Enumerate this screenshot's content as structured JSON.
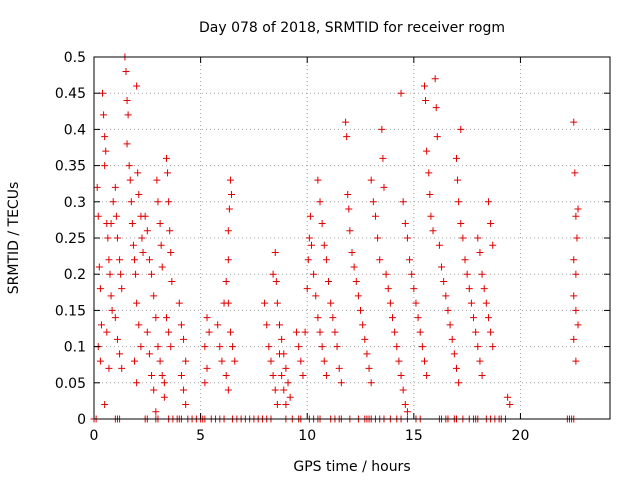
{
  "chart_data": {
    "type": "scatter",
    "title": "Day 078 of 2018, SRMTID for receiver rogm",
    "xlabel": "GPS time / hours",
    "ylabel": "SRMTID / TECUs",
    "xlim": [
      0,
      24.2
    ],
    "ylim": [
      0,
      0.5
    ],
    "xticks": [
      0,
      5,
      10,
      15,
      20
    ],
    "yticks": [
      0,
      0.05,
      0.1,
      0.15,
      0.2,
      0.25,
      0.3,
      0.35,
      0.4,
      0.45,
      0.5
    ],
    "xtick_labels": [
      "0",
      "5",
      "10",
      "15",
      "20"
    ],
    "ytick_labels": [
      "0",
      "0.05",
      "0.1",
      "0.15",
      "0.2",
      "0.25",
      "0.3",
      "0.35",
      "0.4",
      "0.45",
      "0.5"
    ],
    "grid": true,
    "marker": "+",
    "color": "#e00000",
    "series": [
      {
        "name": "SRMTID",
        "points": [
          [
            0.0,
            0.0
          ],
          [
            0.15,
            0.32
          ],
          [
            0.2,
            0.28
          ],
          [
            0.25,
            0.21
          ],
          [
            0.3,
            0.18
          ],
          [
            0.35,
            0.13
          ],
          [
            0.2,
            0.1
          ],
          [
            0.3,
            0.08
          ],
          [
            0.4,
            0.45
          ],
          [
            0.45,
            0.42
          ],
          [
            0.5,
            0.39
          ],
          [
            0.55,
            0.37
          ],
          [
            0.5,
            0.35
          ],
          [
            0.6,
            0.27
          ],
          [
            0.65,
            0.25
          ],
          [
            0.7,
            0.22
          ],
          [
            0.75,
            0.2
          ],
          [
            0.8,
            0.17
          ],
          [
            0.85,
            0.15
          ],
          [
            0.6,
            0.12
          ],
          [
            0.7,
            0.07
          ],
          [
            0.5,
            0.02
          ],
          [
            0.8,
            0.27
          ],
          [
            0.9,
            0.3
          ],
          [
            1.0,
            0.32
          ],
          [
            1.05,
            0.28
          ],
          [
            1.1,
            0.25
          ],
          [
            1.2,
            0.22
          ],
          [
            1.25,
            0.2
          ],
          [
            1.3,
            0.18
          ],
          [
            1.0,
            0.14
          ],
          [
            1.1,
            0.11
          ],
          [
            1.2,
            0.09
          ],
          [
            1.3,
            0.07
          ],
          [
            1.45,
            0.5
          ],
          [
            1.5,
            0.48
          ],
          [
            1.55,
            0.44
          ],
          [
            1.6,
            0.42
          ],
          [
            1.55,
            0.38
          ],
          [
            1.65,
            0.35
          ],
          [
            1.7,
            0.33
          ],
          [
            1.75,
            0.3
          ],
          [
            1.8,
            0.27
          ],
          [
            1.85,
            0.24
          ],
          [
            1.9,
            0.22
          ],
          [
            1.95,
            0.2
          ],
          [
            2.0,
            0.46
          ],
          [
            2.05,
            0.34
          ],
          [
            2.1,
            0.31
          ],
          [
            2.2,
            0.28
          ],
          [
            2.25,
            0.25
          ],
          [
            2.3,
            0.23
          ],
          [
            2.0,
            0.16
          ],
          [
            2.1,
            0.13
          ],
          [
            2.2,
            0.1
          ],
          [
            1.9,
            0.08
          ],
          [
            2.0,
            0.05
          ],
          [
            2.4,
            0.28
          ],
          [
            2.5,
            0.26
          ],
          [
            2.6,
            0.22
          ],
          [
            2.7,
            0.2
          ],
          [
            2.8,
            0.17
          ],
          [
            2.9,
            0.14
          ],
          [
            2.5,
            0.12
          ],
          [
            2.6,
            0.09
          ],
          [
            2.7,
            0.06
          ],
          [
            2.8,
            0.04
          ],
          [
            2.9,
            0.01
          ],
          [
            2.95,
            0.33
          ],
          [
            3.0,
            0.3
          ],
          [
            3.1,
            0.27
          ],
          [
            3.15,
            0.24
          ],
          [
            3.2,
            0.21
          ],
          [
            3.0,
            0.1
          ],
          [
            3.1,
            0.08
          ],
          [
            3.2,
            0.06
          ],
          [
            3.3,
            0.03
          ],
          [
            3.4,
            0.36
          ],
          [
            3.45,
            0.34
          ],
          [
            3.5,
            0.3
          ],
          [
            3.55,
            0.26
          ],
          [
            3.6,
            0.23
          ],
          [
            3.65,
            0.19
          ],
          [
            3.4,
            0.14
          ],
          [
            3.5,
            0.12
          ],
          [
            3.6,
            0.1
          ],
          [
            3.3,
            0.05
          ],
          [
            4.0,
            0.16
          ],
          [
            4.1,
            0.13
          ],
          [
            4.2,
            0.11
          ],
          [
            4.3,
            0.08
          ],
          [
            4.1,
            0.06
          ],
          [
            4.2,
            0.04
          ],
          [
            4.3,
            0.02
          ],
          [
            5.1,
            0.0
          ],
          [
            5.3,
            0.14
          ],
          [
            5.4,
            0.12
          ],
          [
            5.2,
            0.1
          ],
          [
            5.3,
            0.07
          ],
          [
            5.2,
            0.05
          ],
          [
            5.8,
            0.13
          ],
          [
            5.9,
            0.1
          ],
          [
            6.0,
            0.08
          ],
          [
            6.1,
            0.16
          ],
          [
            6.2,
            0.19
          ],
          [
            6.3,
            0.22
          ],
          [
            6.3,
            0.26
          ],
          [
            6.35,
            0.29
          ],
          [
            6.4,
            0.33
          ],
          [
            6.45,
            0.31
          ],
          [
            6.3,
            0.16
          ],
          [
            6.4,
            0.12
          ],
          [
            6.5,
            0.1
          ],
          [
            6.6,
            0.08
          ],
          [
            6.2,
            0.06
          ],
          [
            6.3,
            0.04
          ],
          [
            8.0,
            0.16
          ],
          [
            8.1,
            0.13
          ],
          [
            8.2,
            0.1
          ],
          [
            8.3,
            0.08
          ],
          [
            8.4,
            0.06
          ],
          [
            8.5,
            0.04
          ],
          [
            8.6,
            0.02
          ],
          [
            8.4,
            0.2
          ],
          [
            8.5,
            0.23
          ],
          [
            8.55,
            0.19
          ],
          [
            8.6,
            0.16
          ],
          [
            8.7,
            0.13
          ],
          [
            8.8,
            0.11
          ],
          [
            8.9,
            0.09
          ],
          [
            9.0,
            0.07
          ],
          [
            9.1,
            0.05
          ],
          [
            9.2,
            0.03
          ],
          [
            8.7,
            0.09
          ],
          [
            8.8,
            0.06
          ],
          [
            8.9,
            0.04
          ],
          [
            9.0,
            0.02
          ],
          [
            9.5,
            0.12
          ],
          [
            9.6,
            0.1
          ],
          [
            9.7,
            0.08
          ],
          [
            9.8,
            0.06
          ],
          [
            9.9,
            0.12
          ],
          [
            10.0,
            0.18
          ],
          [
            10.05,
            0.22
          ],
          [
            10.1,
            0.25
          ],
          [
            10.15,
            0.28
          ],
          [
            10.2,
            0.24
          ],
          [
            10.3,
            0.2
          ],
          [
            10.4,
            0.17
          ],
          [
            10.5,
            0.14
          ],
          [
            10.6,
            0.12
          ],
          [
            10.7,
            0.1
          ],
          [
            10.8,
            0.08
          ],
          [
            10.9,
            0.06
          ],
          [
            10.5,
            0.33
          ],
          [
            10.6,
            0.3
          ],
          [
            10.7,
            0.27
          ],
          [
            10.8,
            0.24
          ],
          [
            10.9,
            0.22
          ],
          [
            11.0,
            0.19
          ],
          [
            11.1,
            0.16
          ],
          [
            11.2,
            0.14
          ],
          [
            11.3,
            0.12
          ],
          [
            11.4,
            0.1
          ],
          [
            11.5,
            0.07
          ],
          [
            11.6,
            0.05
          ],
          [
            11.8,
            0.41
          ],
          [
            11.85,
            0.39
          ],
          [
            11.9,
            0.31
          ],
          [
            11.95,
            0.29
          ],
          [
            12.0,
            0.26
          ],
          [
            12.1,
            0.23
          ],
          [
            12.2,
            0.21
          ],
          [
            12.3,
            0.19
          ],
          [
            12.4,
            0.17
          ],
          [
            12.5,
            0.15
          ],
          [
            12.6,
            0.13
          ],
          [
            12.7,
            0.11
          ],
          [
            12.8,
            0.09
          ],
          [
            12.9,
            0.07
          ],
          [
            13.0,
            0.05
          ],
          [
            13.0,
            0.33
          ],
          [
            13.1,
            0.3
          ],
          [
            13.2,
            0.28
          ],
          [
            13.3,
            0.25
          ],
          [
            13.4,
            0.22
          ],
          [
            13.5,
            0.4
          ],
          [
            13.55,
            0.36
          ],
          [
            13.6,
            0.32
          ],
          [
            13.7,
            0.2
          ],
          [
            13.8,
            0.18
          ],
          [
            13.9,
            0.16
          ],
          [
            14.0,
            0.14
          ],
          [
            14.1,
            0.12
          ],
          [
            14.2,
            0.1
          ],
          [
            14.3,
            0.08
          ],
          [
            14.4,
            0.06
          ],
          [
            14.5,
            0.04
          ],
          [
            14.6,
            0.02
          ],
          [
            14.7,
            0.01
          ],
          [
            14.4,
            0.45
          ],
          [
            14.5,
            0.3
          ],
          [
            14.6,
            0.27
          ],
          [
            14.7,
            0.25
          ],
          [
            14.8,
            0.22
          ],
          [
            14.9,
            0.2
          ],
          [
            15.0,
            0.18
          ],
          [
            15.1,
            0.16
          ],
          [
            15.2,
            0.14
          ],
          [
            15.3,
            0.12
          ],
          [
            15.4,
            0.1
          ],
          [
            15.5,
            0.08
          ],
          [
            15.6,
            0.06
          ],
          [
            15.5,
            0.46
          ],
          [
            15.55,
            0.44
          ],
          [
            15.6,
            0.37
          ],
          [
            15.7,
            0.34
          ],
          [
            15.75,
            0.31
          ],
          [
            15.8,
            0.28
          ],
          [
            15.9,
            0.26
          ],
          [
            16.0,
            0.47
          ],
          [
            16.05,
            0.43
          ],
          [
            16.1,
            0.39
          ],
          [
            16.2,
            0.24
          ],
          [
            16.3,
            0.21
          ],
          [
            16.4,
            0.19
          ],
          [
            16.5,
            0.17
          ],
          [
            16.6,
            0.15
          ],
          [
            16.7,
            0.13
          ],
          [
            16.8,
            0.11
          ],
          [
            16.9,
            0.09
          ],
          [
            17.0,
            0.07
          ],
          [
            17.1,
            0.05
          ],
          [
            17.0,
            0.36
          ],
          [
            17.05,
            0.33
          ],
          [
            17.1,
            0.3
          ],
          [
            17.2,
            0.27
          ],
          [
            17.3,
            0.25
          ],
          [
            17.4,
            0.22
          ],
          [
            17.5,
            0.2
          ],
          [
            17.6,
            0.18
          ],
          [
            17.7,
            0.16
          ],
          [
            17.8,
            0.14
          ],
          [
            17.9,
            0.12
          ],
          [
            18.0,
            0.1
          ],
          [
            18.1,
            0.08
          ],
          [
            18.2,
            0.06
          ],
          [
            17.2,
            0.4
          ],
          [
            18.0,
            0.25
          ],
          [
            18.1,
            0.23
          ],
          [
            18.2,
            0.2
          ],
          [
            18.3,
            0.18
          ],
          [
            18.4,
            0.16
          ],
          [
            18.5,
            0.14
          ],
          [
            18.6,
            0.12
          ],
          [
            18.7,
            0.1
          ],
          [
            18.5,
            0.3
          ],
          [
            18.6,
            0.27
          ],
          [
            18.7,
            0.24
          ],
          [
            19.4,
            0.03
          ],
          [
            19.5,
            0.02
          ],
          [
            22.5,
            0.41
          ],
          [
            22.55,
            0.34
          ],
          [
            22.6,
            0.28
          ],
          [
            22.65,
            0.25
          ],
          [
            22.5,
            0.22
          ],
          [
            22.6,
            0.2
          ],
          [
            22.5,
            0.17
          ],
          [
            22.6,
            0.15
          ],
          [
            22.7,
            0.13
          ],
          [
            22.5,
            0.11
          ],
          [
            22.6,
            0.08
          ],
          [
            22.7,
            0.29
          ]
        ],
        "zero_x": [
          0.1,
          1.0,
          1.1,
          1.2,
          2.4,
          2.5,
          2.9,
          3.0,
          3.5,
          3.7,
          3.9,
          4.0,
          4.1,
          4.4,
          4.6,
          4.8,
          5.0,
          5.2,
          5.5,
          5.7,
          5.9,
          6.1,
          6.5,
          6.7,
          6.9,
          7.1,
          7.3,
          7.5,
          7.7,
          7.9,
          8.1,
          8.3,
          9.0,
          9.3,
          9.6,
          9.7,
          10.1,
          10.3,
          10.5,
          10.6,
          11.1,
          11.3,
          11.5,
          11.6,
          12.0,
          12.4,
          12.7,
          12.8,
          12.9,
          13.0,
          13.2,
          13.4,
          13.6,
          13.9,
          14.2,
          14.4,
          14.7,
          15.1,
          15.3,
          16.2,
          16.3,
          16.5,
          16.6,
          16.9,
          17.0,
          17.3,
          17.6,
          17.8,
          17.9,
          18.0,
          18.4,
          18.6,
          18.8,
          19.0,
          19.1,
          19.3,
          22.2,
          22.3,
          22.4,
          22.5
        ]
      }
    ]
  }
}
